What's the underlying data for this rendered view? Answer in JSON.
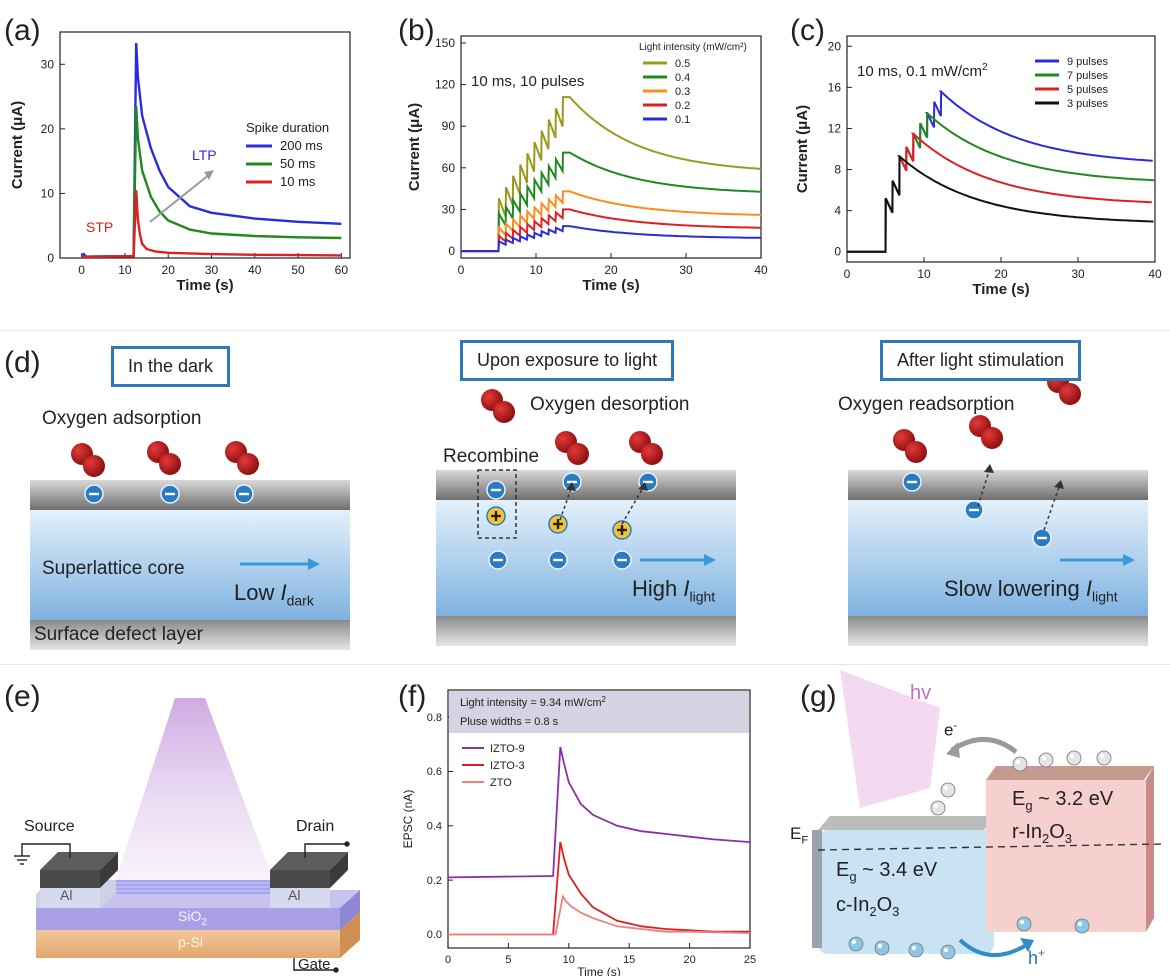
{
  "panels": {
    "a_label": "(a)",
    "b_label": "(b)",
    "c_label": "(c)",
    "d_label": "(d)",
    "e_label": "(e)",
    "f_label": "(f)",
    "g_label": "(g)"
  },
  "chart_data": [
    {
      "id": "a",
      "type": "line",
      "xlabel": "Time (s)",
      "ylabel": "Current (μA)",
      "xlim": [
        -5,
        62
      ],
      "ylim": [
        0,
        35
      ],
      "xticks": [
        0,
        10,
        20,
        30,
        40,
        50,
        60
      ],
      "yticks": [
        0,
        10,
        20,
        30
      ],
      "legend_title": "Spike duration",
      "legend_position": "right",
      "annotations": [
        "LTP",
        "STP"
      ],
      "series": [
        {
          "name": "200 ms",
          "color": "#2b2bdd",
          "x": [
            0,
            0.5,
            1,
            12,
            12.6,
            13,
            14,
            16,
            18,
            20,
            25,
            30,
            40,
            50,
            60
          ],
          "y": [
            0.3,
            0.6,
            0.2,
            0.3,
            33.3,
            28,
            22,
            17,
            13.5,
            11,
            8,
            7,
            6.1,
            5.6,
            5.3
          ]
        },
        {
          "name": "50 ms",
          "color": "#1f8a1f",
          "x": [
            0,
            12,
            12.6,
            13,
            14,
            16,
            18,
            20,
            25,
            30,
            40,
            50,
            60
          ],
          "y": [
            0.2,
            0.3,
            23.5,
            18.5,
            13.5,
            9.5,
            7.2,
            5.8,
            4.4,
            3.8,
            3.4,
            3.2,
            3.1
          ]
        },
        {
          "name": "10 ms",
          "color": "#e02020",
          "x": [
            0,
            12,
            12.6,
            13,
            13.5,
            14,
            15,
            17,
            20,
            30,
            40,
            50,
            60
          ],
          "y": [
            0.2,
            0.3,
            10.5,
            6,
            3.5,
            2.2,
            1.4,
            1.0,
            0.8,
            0.6,
            0.5,
            0.45,
            0.4
          ]
        }
      ]
    },
    {
      "id": "b",
      "type": "line",
      "xlabel": "Time (s)",
      "ylabel": "Current (μA)",
      "xlim": [
        0,
        40
      ],
      "ylim": [
        -5,
        155
      ],
      "xticks": [
        0,
        10,
        20,
        30,
        40
      ],
      "yticks": [
        0,
        30,
        60,
        90,
        120,
        150
      ],
      "legend_title": "Light intensity (mW/cm²)",
      "legend_position": "top-right",
      "annotation": "10 ms, 10 pulses",
      "pulse_start": 5,
      "pulse_end": 14.5,
      "pulses": 10,
      "series": [
        {
          "name": "0.5",
          "color": "#9a9a20",
          "first_peak": 38,
          "last_peak": 111,
          "ripple": 22,
          "end": 56
        },
        {
          "name": "0.4",
          "color": "#1f8a1f",
          "first_peak": 27,
          "last_peak": 71,
          "ripple": 14,
          "end": 41
        },
        {
          "name": "0.3",
          "color": "#ff8c1a",
          "first_peak": 17,
          "last_peak": 43,
          "ripple": 9,
          "end": 25
        },
        {
          "name": "0.2",
          "color": "#e02020",
          "first_peak": 11,
          "last_peak": 30,
          "ripple": 7,
          "end": 16
        },
        {
          "name": "0.1",
          "color": "#2b2bdd",
          "first_peak": 7,
          "last_peak": 18,
          "ripple": 4,
          "end": 9
        }
      ]
    },
    {
      "id": "c",
      "type": "line",
      "xlabel": "Time (s)",
      "ylabel": "Current (μA)",
      "xlim": [
        0,
        40
      ],
      "ylim": [
        -1,
        21
      ],
      "xticks": [
        0,
        10,
        20,
        30,
        40
      ],
      "yticks": [
        0,
        4,
        8,
        12,
        16,
        20
      ],
      "legend_position": "top-right",
      "annotation": "10 ms, 0.1 mW/cm",
      "annotation_sup": "2",
      "series": [
        {
          "name": "9 pulses",
          "color": "#2b2bdd",
          "pulses": 9,
          "end": 8.4
        },
        {
          "name": "7 pulses",
          "color": "#1f8a1f",
          "pulses": 7,
          "end": 6.6
        },
        {
          "name": "5 pulses",
          "color": "#e02020",
          "pulses": 5,
          "end": 4.5
        },
        {
          "name": "3 pulses",
          "color": "#111111",
          "pulses": 3,
          "end": 2.7
        }
      ],
      "peaks": [
        5.2,
        6.9,
        9.3,
        10.2,
        11.5,
        12.5,
        13.5,
        14.6,
        15.6
      ]
    },
    {
      "id": "f",
      "type": "line",
      "xlabel": "Time (s)",
      "ylabel": "EPSC (nA)",
      "xlim": [
        0,
        25
      ],
      "ylim": [
        -0.05,
        0.9
      ],
      "xticks": [
        0,
        5,
        10,
        15,
        20,
        25
      ],
      "yticks": [
        0.0,
        0.2,
        0.4,
        0.6,
        0.8
      ],
      "info_lines": [
        "Light intensity = 9.34 mW/cm",
        "Pluse widths = 0.8 s"
      ],
      "info_sup": "2",
      "legend_position": "top-left",
      "series": [
        {
          "name": "IZTO-9",
          "color": "#8b2fa8",
          "x": [
            0,
            8.7,
            9.3,
            9.6,
            10,
            11,
            12,
            14,
            16,
            18,
            20,
            22,
            25
          ],
          "y": [
            0.21,
            0.215,
            0.69,
            0.63,
            0.56,
            0.48,
            0.44,
            0.4,
            0.38,
            0.37,
            0.36,
            0.35,
            0.34
          ]
        },
        {
          "name": "IZTO-3",
          "color": "#e02020",
          "x": [
            0,
            8.7,
            9.3,
            9.6,
            10,
            11,
            12,
            14,
            16,
            18,
            20,
            22,
            25
          ],
          "y": [
            0.0,
            0.0,
            0.34,
            0.28,
            0.22,
            0.15,
            0.1,
            0.05,
            0.03,
            0.02,
            0.015,
            0.01,
            0.01
          ]
        },
        {
          "name": "ZTO",
          "color": "#f08080",
          "x": [
            0,
            8.9,
            9.5,
            9.8,
            10.3,
            11,
            12,
            14,
            16,
            18,
            20,
            25
          ],
          "y": [
            0.0,
            0.0,
            0.14,
            0.12,
            0.1,
            0.08,
            0.06,
            0.03,
            0.02,
            0.01,
            0.01,
            0.005
          ]
        }
      ]
    }
  ],
  "schematic_d": {
    "box1": "In the dark",
    "box2": "Upon exposure to light",
    "box3": "After light stimulation",
    "oxygen_adsorption": "Oxygen adsorption",
    "oxygen_desorption": "Oxygen desorption",
    "oxygen_readsorption": "Oxygen readsorption",
    "recombine": "Recombine",
    "superlattice_core": "Superlattice core",
    "surface_defect_layer": "Surface defect layer",
    "low_text": "Low ",
    "low_sym": "I",
    "low_sub": "dark",
    "high_text": "High ",
    "high_sym": "I",
    "high_sub": "light",
    "slow_text": "Slow lowering ",
    "slow_sym": "I",
    "slow_sub": "light"
  },
  "device_e": {
    "source": "Source",
    "drain": "Drain",
    "gate": "Gate",
    "al_left": "Al",
    "al_right": "Al",
    "sio2": "SiO",
    "sio2_sub": "2",
    "psi": "p-Si"
  },
  "band_g": {
    "hv": "hv",
    "electron": "e",
    "electron_sup": "-",
    "hole": "h",
    "hole_sup": "+",
    "ef": "E",
    "ef_sub": "F",
    "right_eg": "E",
    "right_eg_sub": "g",
    "right_eg_val": " ~ 3.2 eV",
    "right_mat": "r-In",
    "right_mat_sub1": "2",
    "right_mat_mid": "O",
    "right_mat_sub2": "3",
    "left_eg": "E",
    "left_eg_sub": "g",
    "left_eg_val": " ~ 3.4 eV",
    "left_mat": "c-In",
    "left_mat_sub1": "2",
    "left_mat_mid": "O",
    "left_mat_sub2": "3"
  }
}
